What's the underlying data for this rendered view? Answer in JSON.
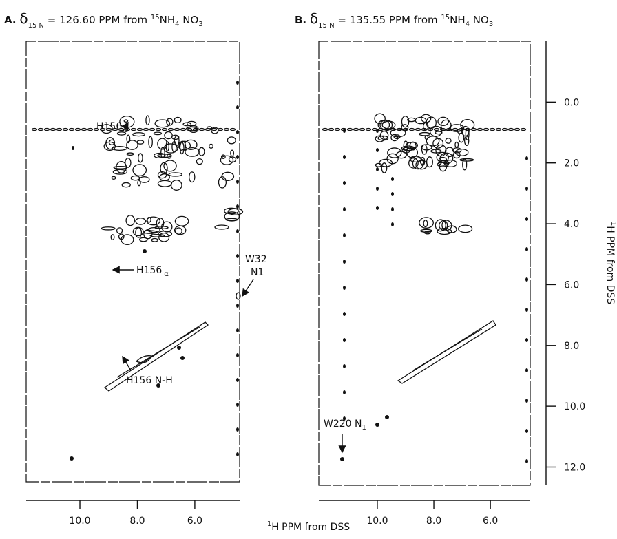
{
  "figure": {
    "panels": [
      {
        "title_parts": [
          "A.",
          "δ",
          "15 N",
          "= 126.60 PPM from ",
          "15",
          "NH",
          "4",
          " NO",
          "3"
        ],
        "xlim": [
          11.87,
          4.44
        ],
        "xticks": [
          {
            "value": 10,
            "label": "10.0"
          },
          {
            "value": 8,
            "label": "8.0"
          },
          {
            "value": 6,
            "label": "6.0"
          }
        ],
        "annotations": [
          "H156",
          "β",
          "H156",
          "α",
          "W32",
          "N1",
          "H156 N-H"
        ]
      },
      {
        "title_parts": [
          "B.",
          "δ",
          "15 N",
          "= 135.55 PPM from ",
          "15",
          "NH",
          "4",
          " NO",
          "3"
        ],
        "xlim": [
          12.07,
          4.59
        ],
        "xticks": [
          {
            "value": 10,
            "label": "10.0"
          },
          {
            "value": 8,
            "label": "8.0"
          },
          {
            "value": 6,
            "label": "6.0"
          }
        ],
        "annotations": [
          "W220 N",
          "1"
        ]
      }
    ],
    "x_axis_label_parts": [
      "1",
      "H PPM from DSS"
    ],
    "y_axis": {
      "label_parts": [
        "1",
        "H PPM from DSS"
      ],
      "ylim": [
        -2.0,
        12.6
      ],
      "yticks": [
        {
          "value": 0,
          "label": "0.0"
        },
        {
          "value": 2,
          "label": "2.0"
        },
        {
          "value": 4,
          "label": "4.0"
        },
        {
          "value": 6,
          "label": "6.0"
        },
        {
          "value": 8,
          "label": "8.0"
        },
        {
          "value": 10,
          "label": "10.0"
        },
        {
          "value": 12,
          "label": "12.0"
        }
      ]
    }
  }
}
